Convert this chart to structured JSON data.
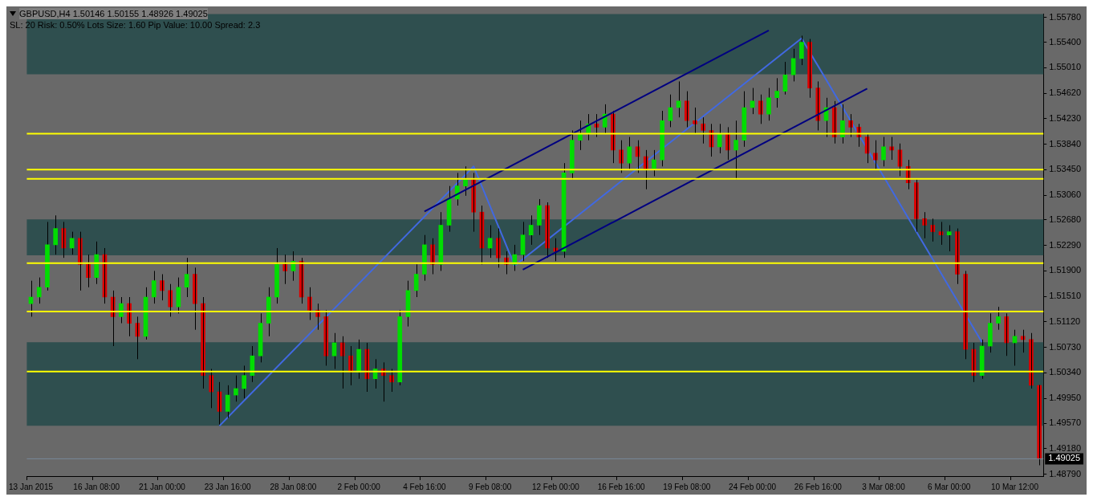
{
  "chart_data": {
    "type": "candlestick",
    "title": "GBPUSD,H4  1.50146 1.50155 1.48926 1.49025",
    "annotations": [
      "SL: 20 Risk: 0.50%  Lots Size: 1.60 Pip Value: 10.00 Spread: 2.3"
    ],
    "categories": [
      "13 Jan 2015",
      null,
      null,
      null,
      null,
      null,
      null,
      null,
      "16 Jan 08:00",
      null,
      null,
      null,
      null,
      null,
      null,
      null,
      "21 Jan 00:00",
      null,
      null,
      null,
      null,
      null,
      null,
      null,
      "23 Jan 16:00",
      null,
      null,
      null,
      null,
      null,
      null,
      null,
      "28 Jan 08:00",
      null,
      null,
      null,
      null,
      null,
      null,
      null,
      "2 Feb 00:00",
      null,
      null,
      null,
      null,
      null,
      null,
      null,
      "4 Feb 16:00",
      null,
      null,
      null,
      null,
      null,
      null,
      null,
      "9 Feb 08:00",
      null,
      null,
      null,
      null,
      null,
      null,
      null,
      "12 Feb 00:00",
      null,
      null,
      null,
      null,
      null,
      null,
      null,
      "16 Feb 16:00",
      null,
      null,
      null,
      null,
      null,
      null,
      null,
      "19 Feb 08:00",
      null,
      null,
      null,
      null,
      null,
      null,
      null,
      "24 Feb 00:00",
      null,
      null,
      null,
      null,
      null,
      null,
      null,
      "26 Feb 16:00",
      null,
      null,
      null,
      null,
      null,
      null,
      null,
      "3 Mar 08:00",
      null,
      null,
      null,
      null,
      null,
      null,
      null,
      "6 Mar 00:00",
      null,
      null,
      null,
      null,
      null,
      null,
      null,
      "10 Mar 12:00",
      null,
      null,
      null
    ],
    "ohlc": [
      [
        1.514,
        1.5175,
        1.512,
        1.515
      ],
      [
        1.515,
        1.518,
        1.514,
        1.5165
      ],
      [
        1.5165,
        1.5265,
        1.516,
        1.523
      ],
      [
        1.523,
        1.5275,
        1.5215,
        1.5255
      ],
      [
        1.5255,
        1.5265,
        1.521,
        1.5225
      ],
      [
        1.5225,
        1.525,
        1.5215,
        1.524
      ],
      [
        1.524,
        1.525,
        1.516,
        1.52
      ],
      [
        1.52,
        1.5215,
        1.5165,
        1.518
      ],
      [
        1.518,
        1.5235,
        1.517,
        1.5215
      ],
      [
        1.5215,
        1.5225,
        1.514,
        1.515
      ],
      [
        1.515,
        1.516,
        1.5075,
        1.512
      ],
      [
        1.512,
        1.515,
        1.511,
        1.514
      ],
      [
        1.514,
        1.515,
        1.509,
        1.511
      ],
      [
        1.511,
        1.512,
        1.5055,
        1.509
      ],
      [
        1.509,
        1.5165,
        1.5085,
        1.515
      ],
      [
        1.515,
        1.519,
        1.514,
        1.5175
      ],
      [
        1.5175,
        1.5185,
        1.5145,
        1.516
      ],
      [
        1.516,
        1.517,
        1.512,
        1.5135
      ],
      [
        1.5135,
        1.518,
        1.5125,
        1.5165
      ],
      [
        1.5165,
        1.521,
        1.515,
        1.5185
      ],
      [
        1.5185,
        1.5195,
        1.51,
        1.514
      ],
      [
        1.514,
        1.515,
        1.501,
        1.503
      ],
      [
        1.503,
        1.504,
        1.498,
        1.5005
      ],
      [
        1.5005,
        1.502,
        1.4955,
        1.4975
      ],
      [
        1.4975,
        1.5015,
        1.4965,
        1.5
      ],
      [
        1.5,
        1.503,
        1.499,
        1.501
      ],
      [
        1.501,
        1.5045,
        1.4995,
        1.503
      ],
      [
        1.503,
        1.5075,
        1.502,
        1.506
      ],
      [
        1.506,
        1.5125,
        1.505,
        1.511
      ],
      [
        1.511,
        1.5165,
        1.509,
        1.515
      ],
      [
        1.515,
        1.5225,
        1.514,
        1.52
      ],
      [
        1.52,
        1.5215,
        1.517,
        1.519
      ],
      [
        1.519,
        1.522,
        1.5175,
        1.5205
      ],
      [
        1.5205,
        1.521,
        1.514,
        1.515
      ],
      [
        1.515,
        1.5165,
        1.5115,
        1.513
      ],
      [
        1.513,
        1.514,
        1.51,
        1.512
      ],
      [
        1.512,
        1.513,
        1.5045,
        1.506
      ],
      [
        1.506,
        1.5095,
        1.504,
        1.508
      ],
      [
        1.508,
        1.509,
        1.501,
        1.506
      ],
      [
        1.506,
        1.5075,
        1.5015,
        1.5035
      ],
      [
        1.5035,
        1.5085,
        1.5025,
        1.507
      ],
      [
        1.507,
        1.508,
        1.5005,
        1.5025
      ],
      [
        1.5025,
        1.5055,
        1.501,
        1.504
      ],
      [
        1.504,
        1.505,
        1.499,
        1.503
      ],
      [
        1.503,
        1.504,
        1.5005,
        1.502
      ],
      [
        1.502,
        1.513,
        1.5015,
        1.512
      ],
      [
        1.512,
        1.5175,
        1.5105,
        1.516
      ],
      [
        1.516,
        1.52,
        1.515,
        1.5185
      ],
      [
        1.5185,
        1.5245,
        1.5175,
        1.523
      ],
      [
        1.523,
        1.524,
        1.5185,
        1.52
      ],
      [
        1.52,
        1.528,
        1.519,
        1.526
      ],
      [
        1.526,
        1.532,
        1.525,
        1.53
      ],
      [
        1.53,
        1.534,
        1.529,
        1.532
      ],
      [
        1.532,
        1.535,
        1.5305,
        1.533
      ],
      [
        1.533,
        1.534,
        1.525,
        1.528
      ],
      [
        1.528,
        1.529,
        1.52,
        1.5225
      ],
      [
        1.5225,
        1.526,
        1.521,
        1.524
      ],
      [
        1.524,
        1.5255,
        1.5195,
        1.521
      ],
      [
        1.521,
        1.522,
        1.5185,
        1.52
      ],
      [
        1.52,
        1.523,
        1.519,
        1.5215
      ],
      [
        1.5215,
        1.5265,
        1.5205,
        1.5245
      ],
      [
        1.5245,
        1.5275,
        1.523,
        1.526
      ],
      [
        1.526,
        1.53,
        1.5245,
        1.529
      ],
      [
        1.529,
        1.5295,
        1.521,
        1.5225
      ],
      [
        1.5225,
        1.524,
        1.5205,
        1.522
      ],
      [
        1.522,
        1.5355,
        1.521,
        1.534
      ],
      [
        1.534,
        1.5405,
        1.533,
        1.539
      ],
      [
        1.539,
        1.542,
        1.5375,
        1.54
      ],
      [
        1.54,
        1.543,
        1.539,
        1.5415
      ],
      [
        1.5415,
        1.543,
        1.5395,
        1.541
      ],
      [
        1.541,
        1.5445,
        1.54,
        1.543
      ],
      [
        1.543,
        1.5435,
        1.5355,
        1.5375
      ],
      [
        1.5375,
        1.539,
        1.534,
        1.5355
      ],
      [
        1.5355,
        1.5395,
        1.5345,
        1.538
      ],
      [
        1.538,
        1.539,
        1.534,
        1.5365
      ],
      [
        1.5365,
        1.5375,
        1.5315,
        1.5345
      ],
      [
        1.5345,
        1.5375,
        1.5335,
        1.536
      ],
      [
        1.536,
        1.5435,
        1.535,
        1.542
      ],
      [
        1.542,
        1.546,
        1.541,
        1.544
      ],
      [
        1.544,
        1.548,
        1.5425,
        1.545
      ],
      [
        1.545,
        1.5465,
        1.541,
        1.542
      ],
      [
        1.542,
        1.544,
        1.54,
        1.5415
      ],
      [
        1.5415,
        1.5425,
        1.5385,
        1.5405
      ],
      [
        1.5405,
        1.5415,
        1.5365,
        1.538
      ],
      [
        1.538,
        1.5415,
        1.537,
        1.54
      ],
      [
        1.54,
        1.541,
        1.536,
        1.5375
      ],
      [
        1.5375,
        1.542,
        1.533,
        1.539
      ],
      [
        1.539,
        1.5465,
        1.538,
        1.544
      ],
      [
        1.544,
        1.547,
        1.543,
        1.545
      ],
      [
        1.545,
        1.546,
        1.5415,
        1.543
      ],
      [
        1.543,
        1.547,
        1.542,
        1.5455
      ],
      [
        1.5455,
        1.5485,
        1.544,
        1.5465
      ],
      [
        1.5465,
        1.551,
        1.546,
        1.549
      ],
      [
        1.549,
        1.553,
        1.548,
        1.5515
      ],
      [
        1.5515,
        1.555,
        1.5505,
        1.554
      ],
      [
        1.554,
        1.5545,
        1.5455,
        1.547
      ],
      [
        1.547,
        1.548,
        1.5405,
        1.542
      ],
      [
        1.542,
        1.5455,
        1.5395,
        1.544
      ],
      [
        1.544,
        1.545,
        1.5385,
        1.5395
      ],
      [
        1.5395,
        1.5445,
        1.5385,
        1.542
      ],
      [
        1.542,
        1.543,
        1.5395,
        1.541
      ],
      [
        1.541,
        1.5415,
        1.538,
        1.5395
      ],
      [
        1.5395,
        1.54,
        1.5355,
        1.537
      ],
      [
        1.537,
        1.539,
        1.5345,
        1.536
      ],
      [
        1.536,
        1.5395,
        1.535,
        1.538
      ],
      [
        1.538,
        1.5395,
        1.536,
        1.5375
      ],
      [
        1.5375,
        1.5385,
        1.5335,
        1.535
      ],
      [
        1.535,
        1.536,
        1.5315,
        1.5325
      ],
      [
        1.5325,
        1.533,
        1.525,
        1.527
      ],
      [
        1.527,
        1.528,
        1.524,
        1.526
      ],
      [
        1.526,
        1.527,
        1.5235,
        1.525
      ],
      [
        1.525,
        1.5265,
        1.523,
        1.5245
      ],
      [
        1.5245,
        1.526,
        1.522,
        1.525
      ],
      [
        1.525,
        1.5255,
        1.517,
        1.5185
      ],
      [
        1.5185,
        1.519,
        1.5055,
        1.507
      ],
      [
        1.507,
        1.508,
        1.502,
        1.503
      ],
      [
        1.503,
        1.5085,
        1.5025,
        1.5075
      ],
      [
        1.5075,
        1.5125,
        1.5065,
        1.511
      ],
      [
        1.511,
        1.5135,
        1.51,
        1.512
      ],
      [
        1.512,
        1.5125,
        1.506,
        1.508
      ],
      [
        1.508,
        1.51,
        1.5045,
        1.509
      ],
      [
        1.509,
        1.51,
        1.5065,
        1.5085
      ],
      [
        1.5085,
        1.5095,
        1.501,
        1.5015
      ],
      [
        1.50146,
        1.50155,
        1.48926,
        1.49025
      ]
    ],
    "series": [
      {
        "type": "line",
        "color": "#4169e1",
        "values": [
          null,
          null,
          null,
          null,
          null,
          null,
          null,
          null,
          null,
          null,
          null,
          null,
          null,
          null,
          null,
          null,
          null,
          null,
          null,
          null,
          null,
          null,
          null,
          1.4953,
          null,
          null,
          null,
          null,
          null,
          null,
          null,
          null,
          null,
          null,
          null,
          null,
          null,
          null,
          null,
          null,
          null,
          null,
          null,
          null,
          null,
          null,
          null,
          null,
          null,
          null,
          null,
          null,
          null,
          null,
          1.535,
          null,
          null,
          null,
          null,
          1.5198,
          null,
          null,
          null,
          null,
          null,
          null,
          null,
          null,
          null,
          null,
          null,
          null,
          null,
          null,
          null,
          null,
          null,
          null,
          null,
          null,
          null,
          null,
          null,
          null,
          null,
          null,
          null,
          null,
          null,
          null,
          null,
          null,
          null,
          null,
          1.5546,
          null,
          null,
          null,
          null,
          null,
          null,
          null,
          null,
          null,
          null,
          null,
          null,
          null,
          null,
          null,
          null,
          null,
          null,
          null,
          null,
          null,
          1.5081,
          null,
          null,
          null,
          null,
          null,
          null,
          null
        ]
      },
      {
        "type": "line",
        "color": "#000080",
        "values": [
          null,
          null,
          null,
          null,
          null,
          null,
          null,
          null,
          null,
          null,
          null,
          null,
          null,
          null,
          null,
          null,
          null,
          null,
          null,
          null,
          null,
          null,
          null,
          null,
          null,
          null,
          null,
          null,
          null,
          null,
          null,
          null,
          null,
          null,
          null,
          null,
          null,
          null,
          null,
          null,
          null,
          null,
          null,
          null,
          null,
          null,
          null,
          null,
          1.5281,
          null,
          null,
          null,
          null,
          null,
          null,
          null,
          null,
          null,
          null,
          null,
          null,
          null,
          null,
          null,
          null,
          null,
          null,
          null,
          null,
          null,
          null,
          null,
          null,
          null,
          null,
          null,
          null,
          null,
          null,
          null,
          null,
          null,
          null,
          null,
          null,
          null,
          null,
          null,
          null,
          null,
          1.5558,
          null,
          null,
          null,
          null,
          null,
          null,
          null,
          null,
          null,
          null,
          null,
          null,
          null,
          null,
          null,
          null,
          null,
          null,
          null,
          null,
          null,
          null,
          null,
          null,
          null,
          null,
          null,
          null,
          null,
          null,
          null,
          null,
          null
        ]
      },
      {
        "type": "line",
        "color": "#000080",
        "values": [
          null,
          null,
          null,
          null,
          null,
          null,
          null,
          null,
          null,
          null,
          null,
          null,
          null,
          null,
          null,
          null,
          null,
          null,
          null,
          null,
          null,
          null,
          null,
          null,
          null,
          null,
          null,
          null,
          null,
          null,
          null,
          null,
          null,
          null,
          null,
          null,
          null,
          null,
          null,
          null,
          null,
          null,
          null,
          null,
          null,
          null,
          null,
          null,
          null,
          null,
          null,
          null,
          null,
          null,
          null,
          null,
          null,
          null,
          null,
          null,
          1.5192,
          null,
          null,
          null,
          null,
          null,
          null,
          null,
          null,
          null,
          null,
          null,
          null,
          null,
          null,
          null,
          null,
          null,
          null,
          null,
          null,
          null,
          null,
          null,
          null,
          null,
          null,
          null,
          null,
          null,
          null,
          null,
          null,
          null,
          null,
          null,
          null,
          null,
          null,
          null,
          null,
          null,
          1.5469,
          null,
          null,
          null,
          null,
          null,
          null,
          null,
          null,
          null,
          null,
          null,
          null,
          null,
          null,
          null,
          null,
          null,
          null,
          null,
          null,
          null
        ]
      }
    ],
    "ylim": [
      1.4876,
      1.5583
    ],
    "yticks": [
      {
        "value": 1.5578,
        "label": "1.55780"
      },
      {
        "value": 1.554,
        "label": "1.55400"
      },
      {
        "value": 1.5501,
        "label": "1.55010"
      },
      {
        "value": 1.5462,
        "label": "1.54620"
      },
      {
        "value": 1.5423,
        "label": "1.54230"
      },
      {
        "value": 1.5384,
        "label": "1.53840"
      },
      {
        "value": 1.5345,
        "label": "1.53450"
      },
      {
        "value": 1.5306,
        "label": "1.53060"
      },
      {
        "value": 1.5268,
        "label": "1.52680"
      },
      {
        "value": 1.5229,
        "label": "1.52290"
      },
      {
        "value": 1.519,
        "label": "1.51900"
      },
      {
        "value": 1.5151,
        "label": "1.51510"
      },
      {
        "value": 1.5112,
        "label": "1.51120"
      },
      {
        "value": 1.5073,
        "label": "1.50730"
      },
      {
        "value": 1.5034,
        "label": "1.50340"
      },
      {
        "value": 1.4995,
        "label": "1.49950"
      },
      {
        "value": 1.4957,
        "label": "1.49570"
      },
      {
        "value": 1.4918,
        "label": "1.49180"
      },
      {
        "value": 1.4879,
        "label": "1.48790"
      }
    ],
    "bands": [
      {
        "axis": "y",
        "from": 1.5491,
        "to": 1.5583,
        "color": "#2f4f4f"
      },
      {
        "axis": "y",
        "from": 1.5214,
        "to": 1.5269,
        "color": "#2f4f4f"
      },
      {
        "axis": "y",
        "from": 1.4953,
        "to": 1.5081,
        "color": "#2f4f4f"
      }
    ],
    "ref_lines": [
      {
        "axis": "y",
        "value": 1.5331,
        "color": "#ffff00"
      },
      {
        "axis": "y",
        "value": 1.5202,
        "color": "#ffff00"
      },
      {
        "axis": "y",
        "value": 1.54,
        "color": "#ffff00"
      },
      {
        "axis": "y",
        "value": 1.5345,
        "color": "#ffff00"
      },
      {
        "axis": "y",
        "value": 1.5128,
        "color": "#ffff00"
      },
      {
        "axis": "y",
        "value": 1.5036,
        "color": "#ffff00"
      },
      {
        "axis": "y",
        "value": 1.49025,
        "label": "1.49025",
        "color": "#778899"
      }
    ],
    "grid": false,
    "legend": false
  }
}
